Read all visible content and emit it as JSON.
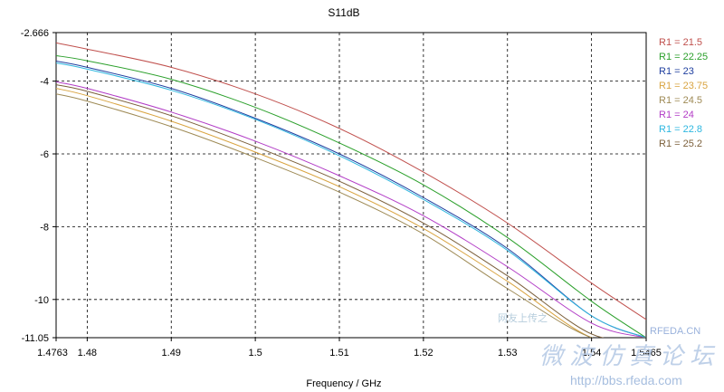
{
  "chart_data": {
    "type": "line",
    "title": "S11dB",
    "xlabel": "Frequency / GHz",
    "ylabel": "",
    "xlim": [
      1.4763,
      1.5465
    ],
    "ylim": [
      -11.05,
      -2.666
    ],
    "xticks": [
      1.4763,
      1.48,
      1.49,
      1.5,
      1.51,
      1.52,
      1.53,
      1.54,
      1.5465
    ],
    "xtick_labels": [
      "1.4763",
      "1.48",
      "1.49",
      "1.5",
      "1.51",
      "1.52",
      "1.53",
      "1.54",
      "1.5465"
    ],
    "yticks": [
      -11.05,
      -10,
      -8,
      -6,
      -4,
      -2.666
    ],
    "ytick_labels": [
      "-11.05",
      "-10",
      "-8",
      "-6",
      "-4",
      "-2.666"
    ],
    "grid": true,
    "grid_style": "dashed",
    "legend_position": "right",
    "series": [
      {
        "name": "R1 = 21.5",
        "color": "#c0504d",
        "x": [
          1.4763,
          1.48,
          1.49,
          1.5,
          1.51,
          1.52,
          1.53,
          1.54,
          1.5465
        ],
        "y": [
          -2.95,
          -3.12,
          -3.62,
          -4.35,
          -5.3,
          -6.5,
          -7.9,
          -9.55,
          -10.55
        ]
      },
      {
        "name": "R1 = 22.25",
        "color": "#2ca02c",
        "x": [
          1.4763,
          1.48,
          1.49,
          1.5,
          1.51,
          1.52,
          1.53,
          1.54,
          1.5465
        ],
        "y": [
          -3.3,
          -3.44,
          -3.95,
          -4.72,
          -5.7,
          -6.85,
          -8.3,
          -10.05,
          -11.05
        ]
      },
      {
        "name": "R1 = 23",
        "color": "#1f3f9f",
        "x": [
          1.4763,
          1.48,
          1.49,
          1.5,
          1.51,
          1.52,
          1.53,
          1.54,
          1.5465
        ],
        "y": [
          -3.45,
          -3.62,
          -4.2,
          -5.02,
          -6.0,
          -7.2,
          -8.6,
          -10.45,
          -11.05
        ]
      },
      {
        "name": "R1 = 23.75",
        "color": "#d9a441",
        "x": [
          1.4763,
          1.48,
          1.49,
          1.5,
          1.51,
          1.52,
          1.53,
          1.54,
          1.5465
        ],
        "y": [
          -4.2,
          -4.4,
          -5.1,
          -5.95,
          -6.9,
          -8.05,
          -9.5,
          -11.05,
          -11.05
        ]
      },
      {
        "name": "R1 = 24.5",
        "color": "#9e8a55",
        "x": [
          1.4763,
          1.48,
          1.49,
          1.5,
          1.51,
          1.52,
          1.53,
          1.54,
          1.5465
        ],
        "y": [
          -4.35,
          -4.55,
          -5.25,
          -6.1,
          -7.05,
          -8.2,
          -9.7,
          -11.05,
          -11.05
        ]
      },
      {
        "name": "R1 = 24",
        "color": "#b23cc6",
        "x": [
          1.4763,
          1.48,
          1.49,
          1.5,
          1.51,
          1.52,
          1.53,
          1.54,
          1.5465
        ],
        "y": [
          -4.02,
          -4.2,
          -4.85,
          -5.65,
          -6.6,
          -7.7,
          -9.1,
          -10.65,
          -11.05
        ]
      },
      {
        "name": "R1 = 22.8",
        "color": "#2eb7e0",
        "x": [
          1.4763,
          1.48,
          1.49,
          1.5,
          1.51,
          1.52,
          1.53,
          1.54,
          1.5465
        ],
        "y": [
          -3.5,
          -3.67,
          -4.25,
          -5.05,
          -6.05,
          -7.25,
          -8.65,
          -10.45,
          -11.05
        ]
      },
      {
        "name": "R1 = 25.2",
        "color": "#7b5f3a",
        "x": [
          1.4763,
          1.48,
          1.49,
          1.5,
          1.51,
          1.52,
          1.53,
          1.54,
          1.5465
        ],
        "y": [
          -4.1,
          -4.28,
          -4.95,
          -5.8,
          -6.75,
          -7.9,
          -9.35,
          -10.95,
          -11.05
        ]
      }
    ]
  },
  "watermark": {
    "line1": "网友上传之",
    "site_tag": "RFEDA.CN",
    "chinese": "微 波 仿 真 论 坛",
    "url": "http://bbs.rfeda.com"
  }
}
